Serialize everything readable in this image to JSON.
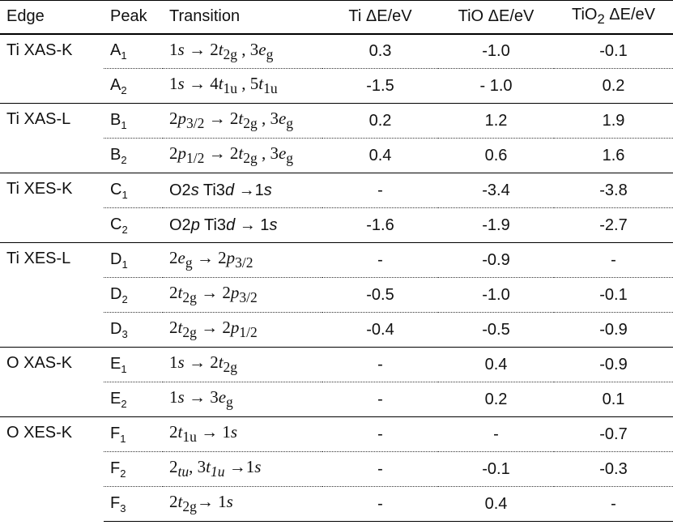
{
  "headers": {
    "edge": "Edge",
    "peak": "Peak",
    "transition": "Transition",
    "ti": "Ti ΔE/eV",
    "tio": "TiO ΔE/eV",
    "tio2_prefix": "TiO",
    "tio2_sub": "2",
    "tio2_suffix": " ΔE/eV"
  },
  "groups": [
    {
      "edge": "Ti XAS-K",
      "rows": [
        {
          "peak": "A",
          "peak_sub": "1",
          "transition_html": "1<i>s</i> → 2<i>t</i><sub>2g</sub> , 3<i>e</i><sub>g</sub>",
          "ti": "0.3",
          "tio": "-1.0",
          "tio2": "-0.1"
        },
        {
          "peak": "A",
          "peak_sub": "2",
          "transition_html": "1<i>s</i> → 4<i>t</i><sub>1u</sub> , 5<i>t</i><sub>1u</sub>",
          "ti": "-1.5",
          "tio": "- 1.0",
          "tio2": "0.2"
        }
      ]
    },
    {
      "edge": "Ti XAS-L",
      "rows": [
        {
          "peak": "B",
          "peak_sub": "1",
          "transition_html": "2<i>p</i><sub>3/2</sub> → 2<i>t</i><sub>2g</sub> , 3<i>e</i><sub>g</sub>",
          "ti": "0.2",
          "tio": "1.2",
          "tio2": "1.9"
        },
        {
          "peak": "B",
          "peak_sub": "2",
          "transition_html": "2<i>p</i><sub>1/2</sub> → 2<i>t</i><sub>2g</sub> , 3<i>e</i><sub>g</sub>",
          "ti": "0.4",
          "tio": "0.6",
          "tio2": "1.6"
        }
      ]
    },
    {
      "edge": "Ti XES-K",
      "rows": [
        {
          "peak": "C",
          "peak_sub": "1",
          "sans": true,
          "transition_html": "O2<i>s</i> Ti3<i>d</i> →1<i>s</i>",
          "ti": "-",
          "tio": "-3.4",
          "tio2": "-3.8"
        },
        {
          "peak": "C",
          "peak_sub": "2",
          "sans": true,
          "transition_html": "O2<i>p</i> Ti3<i>d</i> → 1<i>s</i>",
          "ti": "-1.6",
          "tio": "-1.9",
          "tio2": "-2.7"
        }
      ]
    },
    {
      "edge": "Ti XES-L",
      "rows": [
        {
          "peak": "D",
          "peak_sub": "1",
          "transition_html": "2<i>e</i><sub>g</sub> → 2<i>p</i><sub>3/2</sub>",
          "ti": "-",
          "tio": "-0.9",
          "tio2": "-"
        },
        {
          "peak": "D",
          "peak_sub": "2",
          "transition_html": "2<i>t</i><sub>2g</sub> → 2<i>p</i><sub>3/2</sub>",
          "ti": "-0.5",
          "tio": "-1.0",
          "tio2": "-0.1"
        },
        {
          "peak": "D",
          "peak_sub": "3",
          "transition_html": "2<i>t</i><sub>2g</sub> → 2<i>p</i><sub>1/2</sub>",
          "ti": "-0.4",
          "tio": "-0.5",
          "tio2": "-0.9"
        }
      ]
    },
    {
      "edge": "O XAS-K",
      "rows": [
        {
          "peak": "E",
          "peak_sub": "1",
          "transition_html": "1<i>s</i> → 2<i>t</i><sub>2g</sub>",
          "ti": "-",
          "tio": "0.4",
          "tio2": "-0.9"
        },
        {
          "peak": "E",
          "peak_sub": "2",
          "transition_html": "1<i>s</i> → 3<i>e</i><sub>g</sub>",
          "ti": "-",
          "tio": "0.2",
          "tio2": "0.1"
        }
      ]
    },
    {
      "edge": "O XES-K",
      "rows": [
        {
          "peak": "F",
          "peak_sub": "1",
          "transition_html": "2<i>t</i><sub>1u</sub> → 1<i>s</i>",
          "ti": "-",
          "tio": "-",
          "tio2": "-0.7"
        },
        {
          "peak": "F",
          "peak_sub": "2",
          "transition_html": "2<sub><i>tu</i></sub>, 3<i>t</i><sub><i>1u</i></sub> →1<i>s</i>",
          "ti": "-",
          "tio": "-0.1",
          "tio2": "-0.3"
        },
        {
          "peak": "F",
          "peak_sub": "3",
          "transition_html": "2<i>t</i><sub>2g</sub>→ 1<i>s</i>",
          "ti": "-",
          "tio": "0.4",
          "tio2": "-"
        }
      ]
    }
  ]
}
